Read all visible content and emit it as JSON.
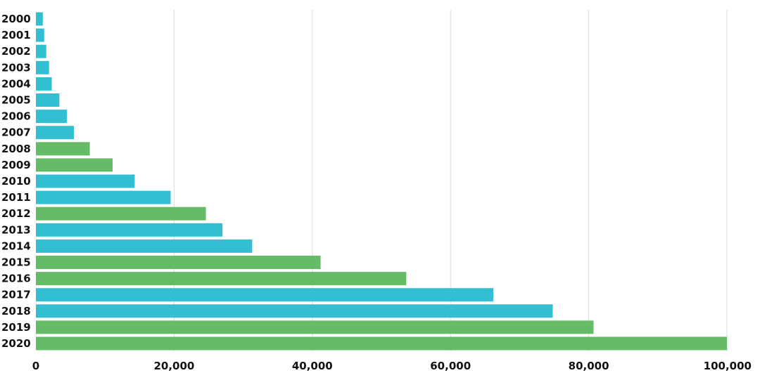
{
  "chart_data": {
    "type": "bar",
    "orientation": "horizontal",
    "title": "",
    "xlabel": "",
    "ylabel": "",
    "xlim": [
      0,
      100000
    ],
    "grid": "vertical",
    "categories": [
      "2000",
      "2001",
      "2002",
      "2003",
      "2004",
      "2005",
      "2006",
      "2007",
      "2008",
      "2009",
      "2010",
      "2011",
      "2012",
      "2013",
      "2014",
      "2015",
      "2016",
      "2017",
      "2018",
      "2019",
      "2020"
    ],
    "values": [
      1000,
      1200,
      1500,
      1900,
      2300,
      3400,
      4500,
      5500,
      7800,
      11100,
      14300,
      19500,
      24600,
      27000,
      31300,
      41200,
      53600,
      66200,
      74800,
      80700,
      100000
    ],
    "bar_colors": [
      "#33bfd1",
      "#33bfd1",
      "#33bfd1",
      "#33bfd1",
      "#33bfd1",
      "#33bfd1",
      "#33bfd1",
      "#33bfd1",
      "#66bb66",
      "#66bb66",
      "#33bfd1",
      "#33bfd1",
      "#66bb66",
      "#33bfd1",
      "#33bfd1",
      "#66bb66",
      "#66bb66",
      "#33bfd1",
      "#33bfd1",
      "#66bb66",
      "#66bb66"
    ],
    "x_ticks": [
      0,
      20000,
      40000,
      60000,
      80000,
      100000
    ],
    "x_tick_labels": [
      "0",
      "20,000",
      "40,000",
      "60,000",
      "80,000",
      "100,000"
    ]
  }
}
